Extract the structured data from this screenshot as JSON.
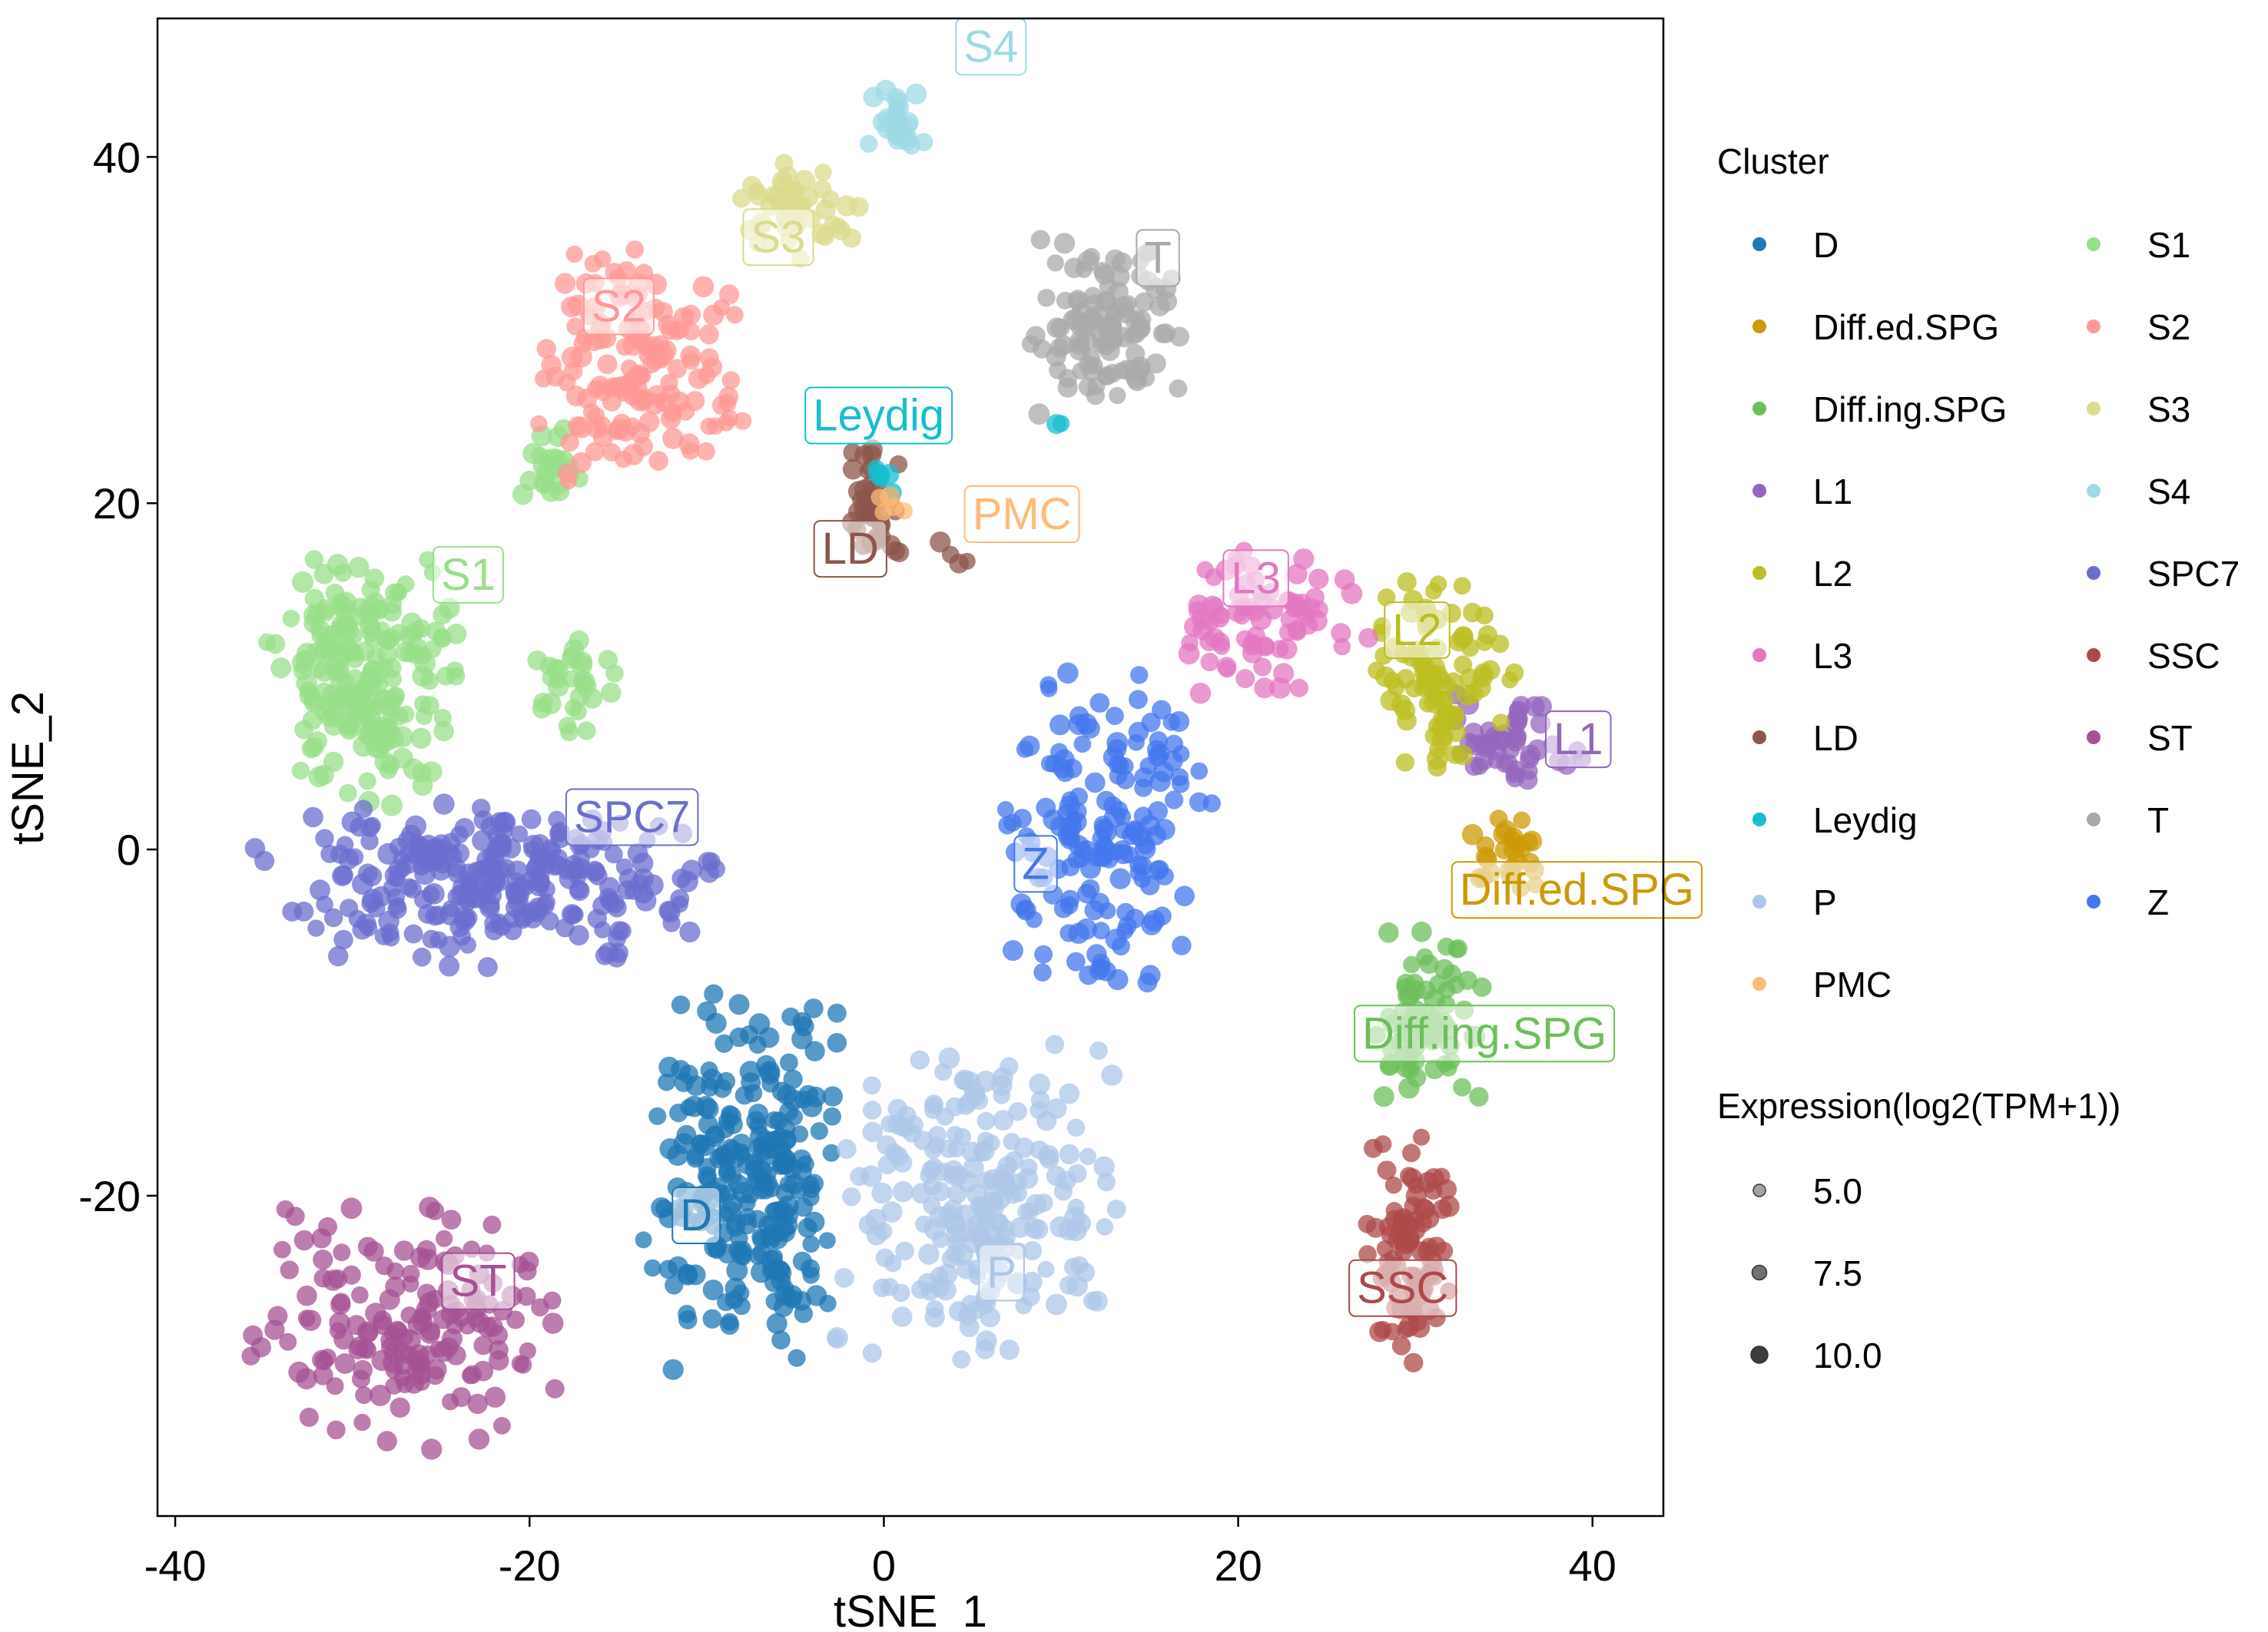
{
  "chart_data": {
    "type": "scatter",
    "title": "",
    "xlabel": "tSNE_1",
    "ylabel": "tSNE_2",
    "xlim": [
      -41,
      44
    ],
    "ylim": [
      -38.5,
      48
    ],
    "xticks": [
      -40,
      -20,
      0,
      20,
      40
    ],
    "yticks": [
      -20,
      0,
      20,
      40
    ],
    "xtick_labels": [
      "-40",
      "-20",
      "0",
      "20",
      "40"
    ],
    "ytick_labels": [
      "-20",
      "0",
      "20",
      "40"
    ],
    "grid": false,
    "legend_position": "right",
    "point_alpha": 0.75,
    "clusters": [
      {
        "name": "D",
        "color": "#1F77B4",
        "label_pos": [
          -11.5,
          -22
        ],
        "regions": [
          {
            "x": [
              -14,
              -1
            ],
            "y": [
              -31,
              -8
            ],
            "n": 260
          }
        ]
      },
      {
        "name": "Diff.ed.SPG",
        "color": "#CC9A06",
        "label_pos": [
          32.5,
          -3.2
        ],
        "regions": [
          {
            "x": [
              33,
              37.5
            ],
            "y": [
              -3,
              2
            ],
            "n": 28
          }
        ]
      },
      {
        "name": "Diff.ing.SPG",
        "color": "#6CBF5B",
        "label_pos": [
          27,
          -11.5
        ],
        "regions": [
          {
            "x": [
              27.5,
              34
            ],
            "y": [
              -16,
              -3.5
            ],
            "n": 70
          }
        ]
      },
      {
        "name": "L1",
        "color": "#9467BD",
        "label_pos": [
          37.8,
          5.5
        ],
        "regions": [
          {
            "x": [
              31,
              40
            ],
            "y": [
              3,
              10
            ],
            "n": 50
          }
        ]
      },
      {
        "name": "L2",
        "color": "#BCBD22",
        "label_pos": [
          28.7,
          11.8
        ],
        "regions": [
          {
            "x": [
              27,
              36
            ],
            "y": [
              4,
              16
            ],
            "n": 90
          }
        ]
      },
      {
        "name": "L3",
        "color": "#E377C2",
        "label_pos": [
          19.6,
          14.8
        ],
        "regions": [
          {
            "x": [
              16,
              27.5
            ],
            "y": [
              8,
              18
            ],
            "n": 80
          }
        ]
      },
      {
        "name": "LD",
        "color": "#8C564B",
        "label_pos": [
          -3.5,
          16.5
        ],
        "regions": [
          {
            "x": [
              -2.5,
              1.5
            ],
            "y": [
              16,
              24
            ],
            "n": 40
          },
          {
            "x": [
              3,
              5.5
            ],
            "y": [
              16,
              18
            ],
            "n": 4
          }
        ]
      },
      {
        "name": "Leydig",
        "color": "#17BECF",
        "label_pos": [
          -4,
          24.2
        ],
        "regions": [
          {
            "x": [
              -1.2,
              1.5
            ],
            "y": [
              20.5,
              22.5
            ],
            "n": 6
          },
          {
            "x": [
              9.5,
              10.2
            ],
            "y": [
              24,
              25
            ],
            "n": 2
          }
        ]
      },
      {
        "name": "P",
        "color": "#AEC7E8",
        "label_pos": [
          5.8,
          -25.3
        ],
        "regions": [
          {
            "x": [
              -3,
              14
            ],
            "y": [
              -30,
              -10
            ],
            "n": 230
          }
        ]
      },
      {
        "name": "PMC",
        "color": "#FFBB78",
        "label_pos": [
          5,
          18.5
        ],
        "regions": [
          {
            "x": [
              -1,
              1.5
            ],
            "y": [
              19,
              21
            ],
            "n": 5
          }
        ]
      },
      {
        "name": "S1",
        "color": "#98DF8A",
        "label_pos": [
          -25,
          15
        ],
        "regions": [
          {
            "x": [
              -35,
              -24
            ],
            "y": [
              2,
              18
            ],
            "n": 220
          },
          {
            "x": [
              -21,
              -17
            ],
            "y": [
              20,
              25
            ],
            "n": 25
          },
          {
            "x": [
              -20,
              -15
            ],
            "y": [
              6,
              14
            ],
            "n": 30
          }
        ]
      },
      {
        "name": "S2",
        "color": "#FF9896",
        "label_pos": [
          -16.5,
          30.5
        ],
        "regions": [
          {
            "x": [
              -20,
              -7.5
            ],
            "y": [
              20,
              35
            ],
            "n": 150
          }
        ]
      },
      {
        "name": "S3",
        "color": "#DBDB8D",
        "label_pos": [
          -7.5,
          34.5
        ],
        "regions": [
          {
            "x": [
              -9,
              -1
            ],
            "y": [
              34,
              40
            ],
            "n": 50
          }
        ]
      },
      {
        "name": "S4",
        "color": "#9EDAE5",
        "label_pos": [
          4.5,
          45.5
        ],
        "regions": [
          {
            "x": [
              -1,
              2.5
            ],
            "y": [
              40,
              44
            ],
            "n": 30
          }
        ]
      },
      {
        "name": "SPC7",
        "color": "#6B6ECF",
        "label_pos": [
          -17.5,
          1.0
        ],
        "regions": [
          {
            "x": [
              -36,
              -8
            ],
            "y": [
              -7,
              3
            ],
            "n": 280
          }
        ]
      },
      {
        "name": "SSC",
        "color": "#AD494A",
        "label_pos": [
          26.7,
          -26.2
        ],
        "regions": [
          {
            "x": [
              27,
              32.5
            ],
            "y": [
              -30,
              -16
            ],
            "n": 90
          }
        ]
      },
      {
        "name": "ST",
        "color": "#A55194",
        "label_pos": [
          -24.5,
          -25.8
        ],
        "regions": [
          {
            "x": [
              -36,
              -18
            ],
            "y": [
              -35,
              -20
            ],
            "n": 170
          }
        ]
      },
      {
        "name": "T",
        "color": "#A9A9A9",
        "label_pos": [
          14.7,
          33.3
        ],
        "regions": [
          {
            "x": [
              8,
              17
            ],
            "y": [
              25,
              36
            ],
            "n": 110
          }
        ]
      },
      {
        "name": "Z",
        "color": "#4477EE",
        "label_pos": [
          7.8,
          -1.7
        ],
        "regions": [
          {
            "x": [
              6,
              19
            ],
            "y": [
              -10,
              12
            ],
            "n": 170
          }
        ]
      }
    ],
    "size_legend": {
      "title": "Expression(log2(TPM+1))",
      "values": [
        "5.0",
        "7.5",
        "10.0"
      ]
    }
  },
  "legend": {
    "title": "Cluster",
    "items": [
      "D",
      "Diff.ed.SPG",
      "Diff.ing.SPG",
      "L1",
      "L2",
      "L3",
      "LD",
      "Leydig",
      "P",
      "PMC",
      "S1",
      "S2",
      "S3",
      "S4",
      "SPC7",
      "SSC",
      "ST",
      "T",
      "Z"
    ]
  }
}
